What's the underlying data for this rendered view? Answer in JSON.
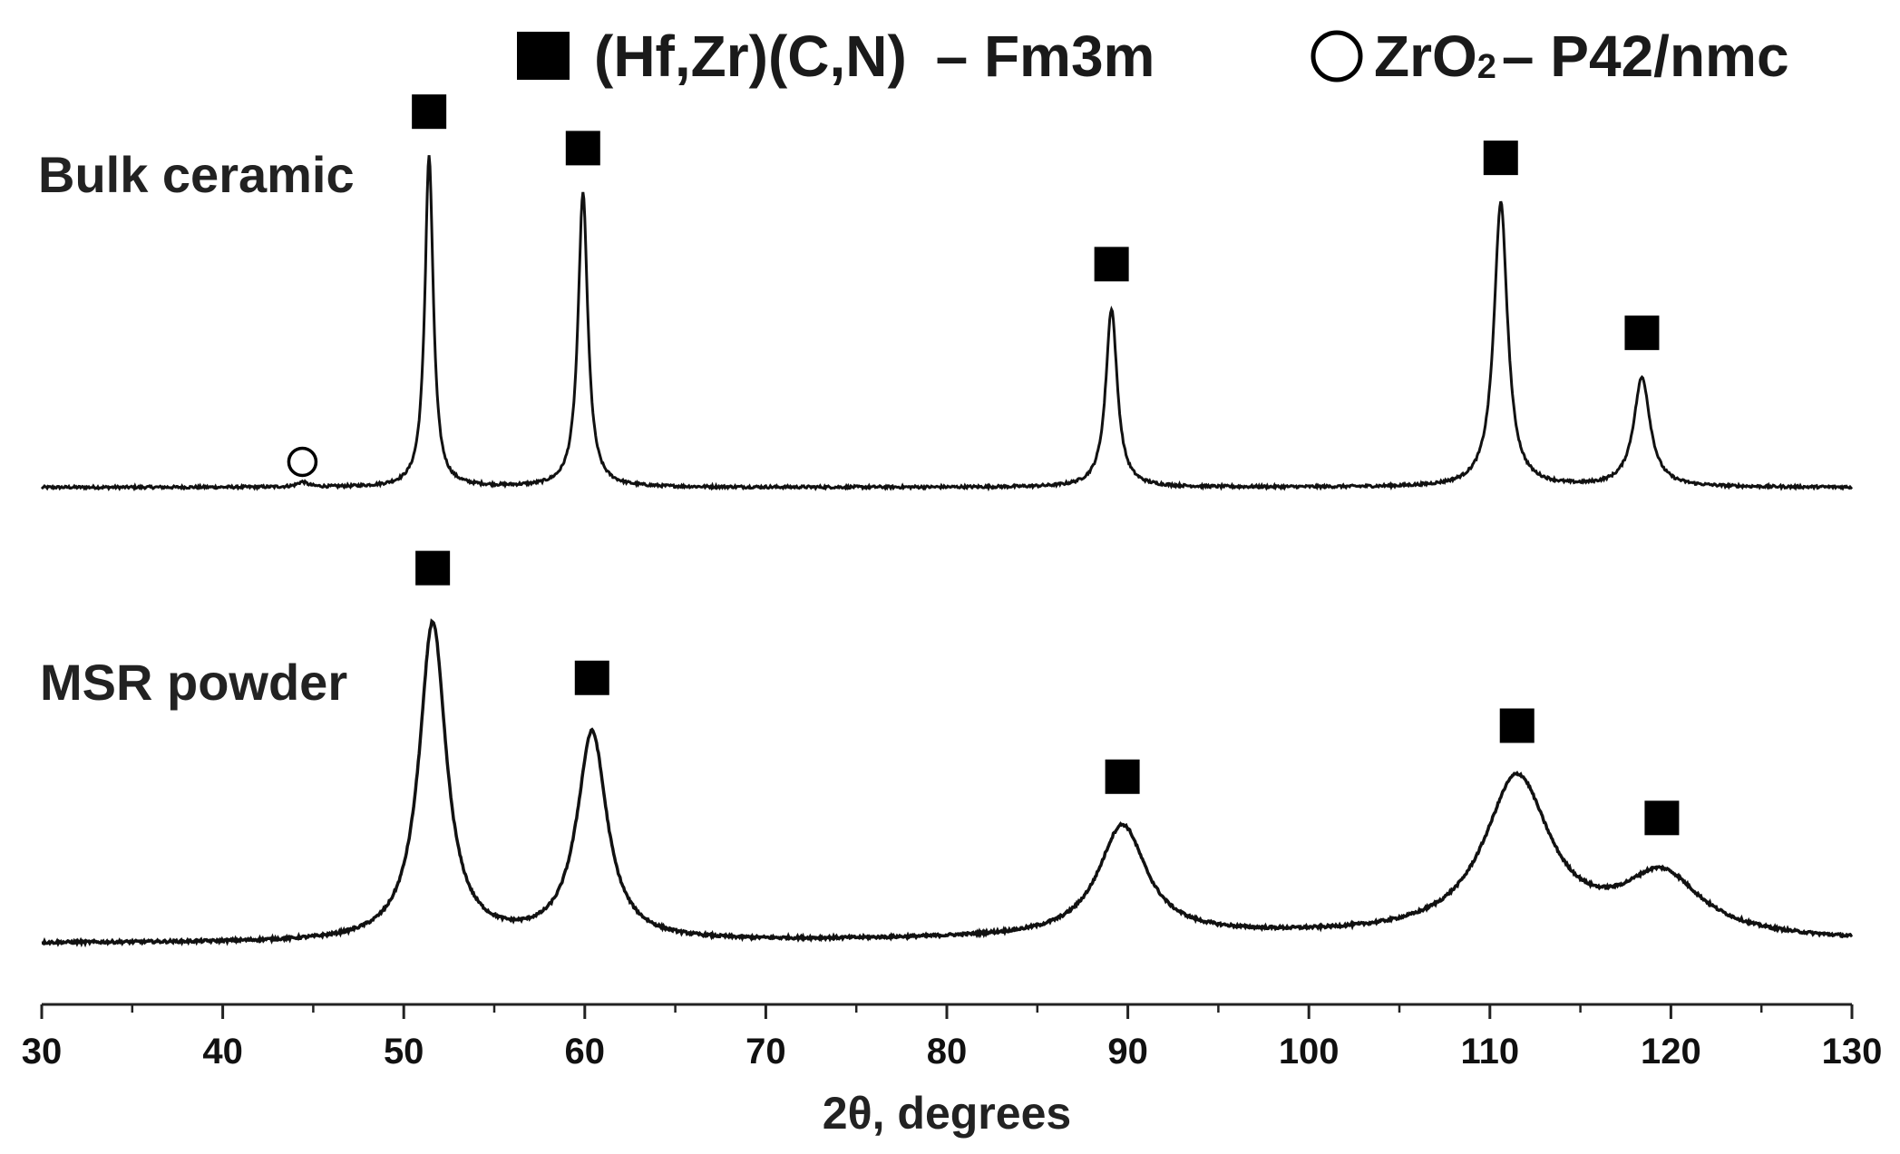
{
  "chart_data": {
    "type": "line",
    "xlabel": "2θ, degrees",
    "ylabel": "",
    "xlim": [
      30,
      130
    ],
    "x_ticks": [
      "30",
      "40",
      "50",
      "60",
      "70",
      "80",
      "90",
      "100",
      "110",
      "120",
      "130"
    ],
    "grid": false,
    "legend": [
      {
        "marker": "filled-square",
        "label_prefix": "(Hf,Zr)(C,N)",
        "label_suffix": "Fm3m",
        "text": "(Hf,Zr)(C,N) – Fm3m"
      },
      {
        "marker": "open-circle",
        "label_prefix": "ZrO",
        "label_sub": "2",
        "label_suffix": "P42/nmc",
        "text": "ZrO2 – P42/nmc"
      }
    ],
    "legend_position": "top-right",
    "series": [
      {
        "name": "Bulk ceramic",
        "baseline": 0.02,
        "noise": 0.004,
        "peaks": [
          {
            "x": 44.4,
            "height": 0.015,
            "width": 0.35,
            "phase": "ZrO2"
          },
          {
            "x": 51.4,
            "height": 1.0,
            "width": 0.28,
            "phase": "(Hf,Zr)(C,N)"
          },
          {
            "x": 59.9,
            "height": 0.89,
            "width": 0.32,
            "phase": "(Hf,Zr)(C,N)"
          },
          {
            "x": 89.1,
            "height": 0.54,
            "width": 0.38,
            "phase": "(Hf,Zr)(C,N)"
          },
          {
            "x": 110.6,
            "height": 0.86,
            "width": 0.45,
            "phase": "(Hf,Zr)(C,N)"
          },
          {
            "x": 118.4,
            "height": 0.33,
            "width": 0.55,
            "phase": "(Hf,Zr)(C,N)"
          }
        ]
      },
      {
        "name": "MSR powder",
        "baseline": 0.02,
        "noise": 0.004,
        "peaks": [
          {
            "x": 51.6,
            "height": 0.95,
            "width": 0.9,
            "phase": "(Hf,Zr)(C,N)"
          },
          {
            "x": 60.4,
            "height": 0.62,
            "width": 1.0,
            "phase": "(Hf,Zr)(C,N)"
          },
          {
            "x": 89.7,
            "height": 0.33,
            "width": 1.6,
            "phase": "(Hf,Zr)(C,N)"
          },
          {
            "x": 111.5,
            "height": 0.47,
            "width": 2.2,
            "phase": "(Hf,Zr)(C,N)"
          },
          {
            "x": 119.5,
            "height": 0.18,
            "width": 2.6,
            "phase": "(Hf,Zr)(C,N)"
          }
        ]
      }
    ]
  },
  "labels": {
    "bulk": "Bulk ceramic",
    "powder": "MSR powder"
  }
}
